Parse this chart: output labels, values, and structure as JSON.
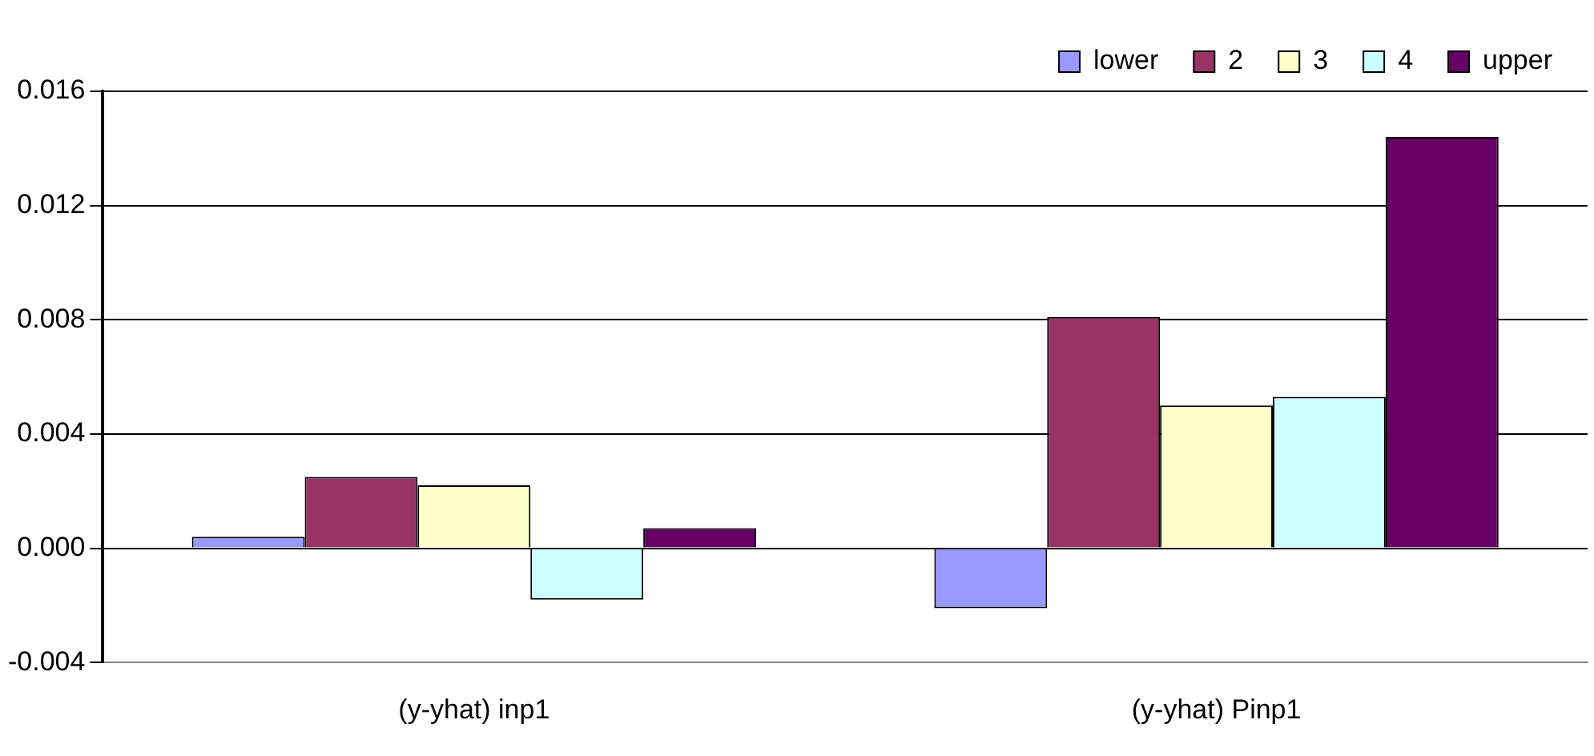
{
  "chart_data": {
    "type": "bar",
    "categories": [
      "(y-yhat) inp1",
      "(y-yhat) Pinp1"
    ],
    "series": [
      {
        "name": "lower",
        "color": "#9999ff",
        "values": [
          0.0004,
          -0.0021
        ]
      },
      {
        "name": "2",
        "color": "#993366",
        "values": [
          0.0025,
          0.0081
        ]
      },
      {
        "name": "3",
        "color": "#ffffcc",
        "values": [
          0.0022,
          0.005
        ]
      },
      {
        "name": "4",
        "color": "#ccffff",
        "values": [
          -0.0018,
          0.0053
        ]
      },
      {
        "name": "upper",
        "color": "#660066",
        "values": [
          0.0007,
          0.0144
        ]
      }
    ],
    "ylim": [
      -0.004,
      0.016
    ],
    "yticks": [
      {
        "value": -0.004,
        "label": "-0.004"
      },
      {
        "value": 0,
        "label": "0.000"
      },
      {
        "value": 0.004,
        "label": "0.004"
      },
      {
        "value": 0.008,
        "label": "0.008"
      },
      {
        "value": 0.012,
        "label": "0.012"
      },
      {
        "value": 0.016,
        "label": "0.016"
      }
    ],
    "grid": "y",
    "legend": "top right"
  }
}
